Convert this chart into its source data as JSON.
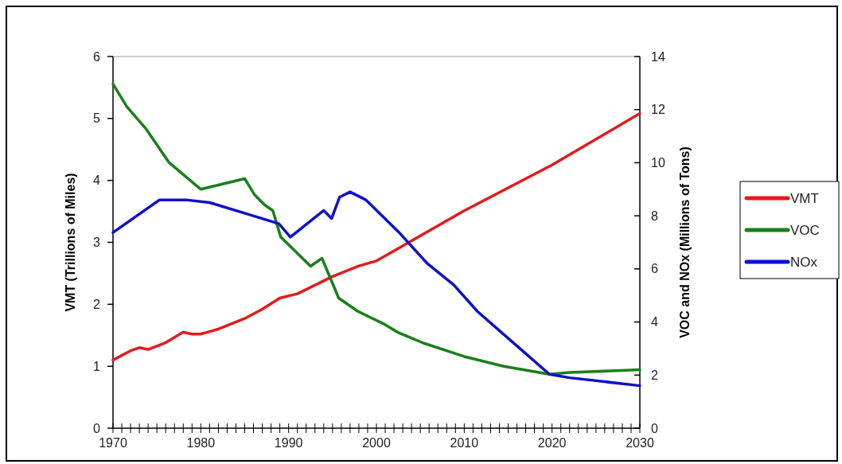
{
  "chart_data": {
    "type": "line",
    "ylabel": "VMT (Trillions of Miles)",
    "y2label": "VOC and NOx (Millions of Tons)",
    "xlim": [
      1970,
      2030
    ],
    "ylim": [
      0,
      6
    ],
    "yticks": [
      0,
      1,
      2,
      3,
      4,
      5,
      6
    ],
    "y2lim": [
      0,
      14
    ],
    "y2ticks": [
      0,
      2,
      4,
      6,
      8,
      10,
      12,
      14
    ],
    "xticks": [
      1970,
      {
        "value": 1971,
        "label": null
      },
      {
        "value": 1972,
        "label": null
      },
      {
        "value": 1973,
        "label": null
      },
      {
        "value": 1974,
        "label": null
      },
      {
        "value": 1975,
        "label": null
      },
      {
        "value": 1976,
        "label": null
      },
      {
        "value": 1977,
        "label": null
      },
      {
        "value": 1978,
        "label": null
      },
      {
        "value": 1979,
        "label": null
      },
      1980,
      {
        "value": 1981,
        "label": null
      },
      {
        "value": 1982,
        "label": null
      },
      {
        "value": 1983,
        "label": null
      },
      {
        "value": 1984,
        "label": null
      },
      {
        "value": 1985,
        "label": null
      },
      {
        "value": 1986,
        "label": null
      },
      {
        "value": 1987,
        "label": null
      },
      {
        "value": 1988,
        "label": null
      },
      {
        "value": 1989,
        "label": null
      },
      1990,
      {
        "value": 1991,
        "label": null
      },
      {
        "value": 1992,
        "label": null
      },
      {
        "value": 1993,
        "label": null
      },
      {
        "value": 1994,
        "label": null
      },
      {
        "value": 1995,
        "label": null
      },
      {
        "value": 1996,
        "label": null
      },
      {
        "value": 1997,
        "label": null
      },
      {
        "value": 1998,
        "label": null
      },
      {
        "value": 1999,
        "label": null
      },
      2000,
      {
        "value": 2001,
        "label": null
      },
      {
        "value": 2002,
        "label": null
      },
      {
        "value": 2003,
        "label": null
      },
      {
        "value": 2004,
        "label": null
      },
      {
        "value": 2005,
        "label": null
      },
      {
        "value": 2006,
        "label": null
      },
      {
        "value": 2007,
        "label": null
      },
      {
        "value": 2008,
        "label": null
      },
      {
        "value": 2009,
        "label": null
      },
      2010,
      {
        "value": 2011,
        "label": null
      },
      {
        "value": 2012,
        "label": null
      },
      {
        "value": 2013,
        "label": null
      },
      {
        "value": 2014,
        "label": null
      },
      {
        "value": 2015,
        "label": null
      },
      {
        "value": 2016,
        "label": null
      },
      {
        "value": 2017,
        "label": null
      },
      {
        "value": 2018,
        "label": null
      },
      {
        "value": 2019,
        "label": null
      },
      2020,
      {
        "value": 2021,
        "label": null
      },
      {
        "value": 2022,
        "label": null
      },
      {
        "value": 2023,
        "label": null
      },
      {
        "value": 2024,
        "label": null
      },
      {
        "value": 2025,
        "label": null
      },
      {
        "value": 2026,
        "label": null
      },
      {
        "value": 2027,
        "label": null
      },
      {
        "value": 2028,
        "label": null
      },
      {
        "value": 2029,
        "label": null
      },
      2030
    ],
    "legend": "right",
    "grid": false,
    "marker": "none",
    "line_style": "solid",
    "series": [
      {
        "name": "VMT",
        "color": "#e31a1c",
        "x": [
          1970,
          1972,
          1973,
          1974,
          1976,
          1978,
          1979,
          1980,
          1982,
          1985,
          1987,
          1989,
          1991,
          1995,
          1998,
          2000,
          2010,
          2020,
          2030
        ],
        "values": [
          1.1,
          1.25,
          1.3,
          1.27,
          1.38,
          1.55,
          1.52,
          1.52,
          1.6,
          1.77,
          1.92,
          2.1,
          2.17,
          2.45,
          2.62,
          2.7,
          3.51,
          4.25,
          5.08
        ]
      },
      {
        "name": "VOC",
        "color": "#1a7f1a",
        "axis": "y2",
        "x": [
          1970,
          1971.6,
          1973.7,
          1976.4,
          1980,
          1985,
          1986.1,
          1987.3,
          1988.2,
          1989.1,
          1992.5,
          1993.8,
          1995.7,
          1997.9,
          2001,
          2002.5,
          2005.4,
          2010,
          2014.5,
          2019.7,
          2022,
          2030
        ],
        "values": [
          12.96,
          12.1,
          11.3,
          10,
          9,
          9.4,
          8.8,
          8.4,
          8.2,
          7.2,
          6.1,
          6.4,
          4.9,
          4.4,
          3.9,
          3.6,
          3.2,
          2.7,
          2.33,
          2.03,
          2.1,
          2.2
        ]
      },
      {
        "name": "NOx",
        "color": "#1010c8",
        "axis": "y2",
        "x": [
          1970,
          1975.3,
          1978.3,
          1981,
          1985,
          1988.9,
          1990.2,
          1994,
          1994.9,
          1995.8,
          1997,
          1998.8,
          2002.5,
          2003.6,
          2005.8,
          2008.8,
          2011.5,
          2016,
          2019.7,
          2022,
          2030
        ],
        "values": [
          7.37,
          8.6,
          8.6,
          8.5,
          8.1,
          7.7,
          7.2,
          8.2,
          7.9,
          8.7,
          8.9,
          8.6,
          7.4,
          7,
          6.2,
          5.4,
          4.4,
          3.1,
          2.03,
          1.9,
          1.6
        ]
      }
    ]
  }
}
